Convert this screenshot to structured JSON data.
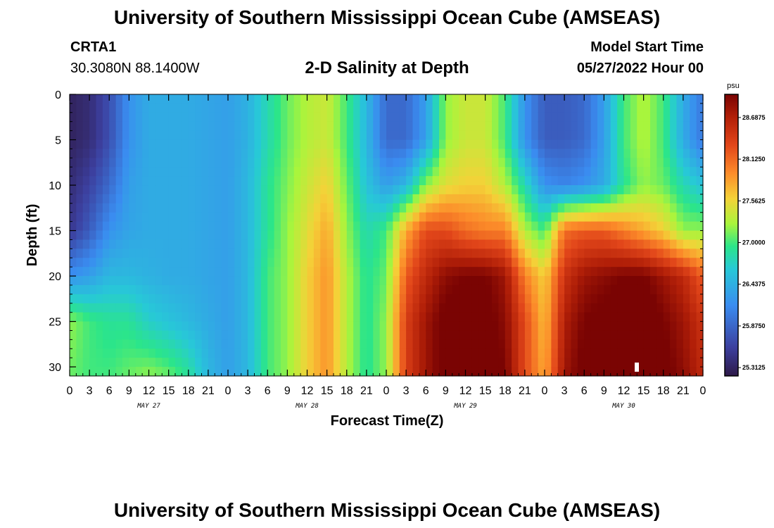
{
  "header": {
    "title": "University of Southern Mississippi Ocean Cube (AMSEAS)",
    "station_id": "CRTA1",
    "station_coords": "30.3080N  88.1400W",
    "plot_title": "2-D Salinity at Depth",
    "model_start_label": "Model Start Time",
    "model_start_value": "05/27/2022 Hour 00"
  },
  "footer": {
    "title": "University of Southern Mississippi Ocean Cube (AMSEAS)"
  },
  "chart_data": {
    "type": "heatmap",
    "title": "2-D Salinity at Depth",
    "xlabel": "Forecast Time(Z)",
    "ylabel": "Depth (ft)",
    "x_ticks": [
      "0",
      "3",
      "6",
      "9",
      "12",
      "15",
      "18",
      "21",
      "0",
      "3",
      "6",
      "9",
      "12",
      "15",
      "18",
      "21",
      "0",
      "3",
      "6",
      "9",
      "12",
      "15",
      "18",
      "21",
      "0",
      "3",
      "6",
      "9",
      "12",
      "15",
      "18",
      "21",
      "0"
    ],
    "x_hours": [
      0,
      3,
      6,
      9,
      12,
      15,
      18,
      21,
      24,
      27,
      30,
      33,
      36,
      39,
      42,
      45,
      48,
      51,
      54,
      57,
      60,
      63,
      66,
      69,
      72,
      75,
      78,
      81,
      84,
      87,
      90,
      93,
      96
    ],
    "date_labels": [
      {
        "label": "MAY 27",
        "hour": 12
      },
      {
        "label": "MAY 28",
        "hour": 36
      },
      {
        "label": "MAY 29",
        "hour": 60
      },
      {
        "label": "MAY 30",
        "hour": 84
      }
    ],
    "xlim": [
      0,
      96
    ],
    "y_ticks": [
      "0",
      "5",
      "10",
      "15",
      "20",
      "25",
      "30"
    ],
    "y_values": [
      0,
      5,
      10,
      15,
      20,
      25,
      30
    ],
    "ylim": [
      0,
      31
    ],
    "y_inverted": true,
    "colorbar": {
      "unit": "psu",
      "min": 25.2,
      "max": 29.0,
      "tick_labels": [
        "28.6875",
        "28.1250",
        "27.5625",
        "27.0000",
        "26.4375",
        "25.8750",
        "25.3125"
      ],
      "tick_values": [
        28.6875,
        28.125,
        27.5625,
        27.0,
        26.4375,
        25.875,
        25.3125
      ]
    },
    "grid": false,
    "depths": [
      0,
      5,
      10,
      15,
      20,
      25,
      31
    ],
    "hours": [
      0,
      3,
      6,
      9,
      12,
      15,
      18,
      21,
      24,
      27,
      30,
      33,
      36,
      39,
      42,
      45,
      48,
      51,
      54,
      57,
      60,
      63,
      66,
      69,
      72,
      75,
      78,
      81,
      84,
      87,
      90,
      93,
      96
    ],
    "values": [
      [
        25.3,
        25.4,
        25.7,
        26.2,
        26.4,
        26.4,
        26.4,
        26.35,
        26.3,
        26.45,
        26.8,
        27.1,
        27.3,
        27.4,
        27.0,
        26.5,
        25.9,
        25.9,
        26.3,
        27.2,
        27.4,
        27.4,
        27.0,
        26.2,
        25.8,
        25.8,
        25.9,
        26.3,
        27.0,
        27.3,
        27.0,
        26.4,
        26.0
      ],
      [
        25.3,
        25.4,
        25.7,
        26.2,
        26.4,
        26.4,
        26.4,
        26.35,
        26.3,
        26.45,
        26.8,
        27.1,
        27.3,
        27.4,
        27.0,
        26.5,
        25.9,
        25.9,
        26.3,
        27.2,
        27.4,
        27.4,
        27.0,
        26.2,
        25.8,
        25.8,
        25.9,
        26.3,
        27.0,
        27.3,
        27.0,
        26.4,
        26.0
      ],
      [
        25.4,
        25.6,
        25.9,
        26.3,
        26.4,
        26.4,
        26.4,
        26.35,
        26.3,
        26.5,
        26.9,
        27.15,
        27.4,
        27.6,
        27.1,
        26.6,
        26.3,
        26.5,
        27.2,
        27.5,
        27.6,
        27.6,
        27.3,
        26.8,
        26.2,
        26.1,
        26.2,
        26.4,
        26.9,
        27.2,
        27.1,
        26.8,
        26.6
      ],
      [
        25.5,
        25.8,
        26.2,
        26.35,
        26.4,
        26.4,
        26.4,
        26.35,
        26.3,
        26.5,
        26.9,
        27.2,
        27.5,
        27.8,
        27.2,
        26.8,
        27.0,
        27.8,
        28.3,
        28.3,
        28.1,
        28.0,
        28.0,
        27.3,
        27.0,
        28.1,
        28.2,
        28.2,
        28.0,
        27.8,
        27.6,
        27.2,
        27.2
      ],
      [
        26.2,
        26.3,
        26.5,
        26.5,
        26.45,
        26.4,
        26.4,
        26.35,
        26.3,
        26.5,
        27.0,
        27.2,
        27.6,
        27.9,
        27.3,
        26.9,
        27.1,
        28.2,
        28.6,
        28.9,
        29.0,
        29.0,
        28.8,
        28.0,
        27.6,
        28.5,
        28.8,
        28.9,
        29.0,
        29.0,
        28.8,
        28.6,
        28.2
      ],
      [
        27.2,
        27.0,
        26.9,
        26.9,
        26.7,
        26.6,
        26.5,
        26.4,
        26.3,
        26.5,
        27.0,
        27.2,
        27.6,
        27.9,
        27.3,
        26.9,
        27.2,
        28.4,
        28.8,
        29.1,
        29.1,
        29.1,
        28.9,
        28.3,
        27.7,
        28.7,
        29.0,
        29.1,
        29.2,
        29.2,
        29.0,
        28.8,
        28.5
      ],
      [
        27.1,
        27.0,
        27.0,
        27.1,
        27.2,
        27.1,
        26.9,
        26.5,
        26.3,
        26.5,
        27.0,
        27.2,
        27.6,
        27.9,
        27.3,
        26.9,
        27.2,
        28.4,
        28.8,
        29.1,
        29.2,
        29.2,
        29.0,
        28.3,
        27.8,
        28.8,
        29.1,
        29.2,
        29.3,
        29.3,
        29.1,
        28.9,
        28.6
      ]
    ]
  }
}
